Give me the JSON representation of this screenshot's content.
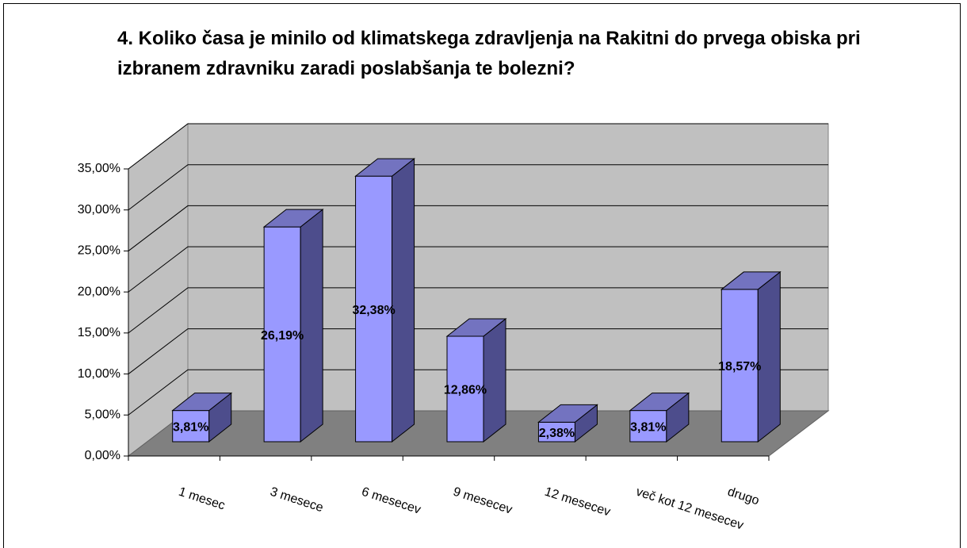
{
  "chart_data": {
    "type": "bar3d",
    "title": "4. Koliko časa je minilo od klimatskega zdravljenja na Rakitni do prvega obiska pri izbranem zdravniku zaradi poslabšanja te bolezni?",
    "categories": [
      "1 mesec",
      "3 mesece",
      "6 mesecev",
      "9 mesecev",
      "12 mesecev",
      "več kot 12 mesecev",
      "drugo"
    ],
    "values": [
      3.81,
      26.19,
      32.38,
      12.86,
      2.38,
      3.81,
      18.57
    ],
    "value_labels": [
      "3,81%",
      "26,19%",
      "32,38%",
      "12,86%",
      "2,38%",
      "3,81%",
      "18,57%"
    ],
    "color": "#9999ff",
    "ylim": [
      0,
      35
    ],
    "yticks": [
      {
        "value": 0,
        "label": "0,00%"
      },
      {
        "value": 5,
        "label": "5,00%"
      },
      {
        "value": 10,
        "label": "10,00%"
      },
      {
        "value": 15,
        "label": "15,00%"
      },
      {
        "value": 20,
        "label": "20,00%"
      },
      {
        "value": 25,
        "label": "25,00%"
      },
      {
        "value": 30,
        "label": "30,00%"
      },
      {
        "value": 35,
        "label": "35,00%"
      }
    ],
    "grid": true
  }
}
